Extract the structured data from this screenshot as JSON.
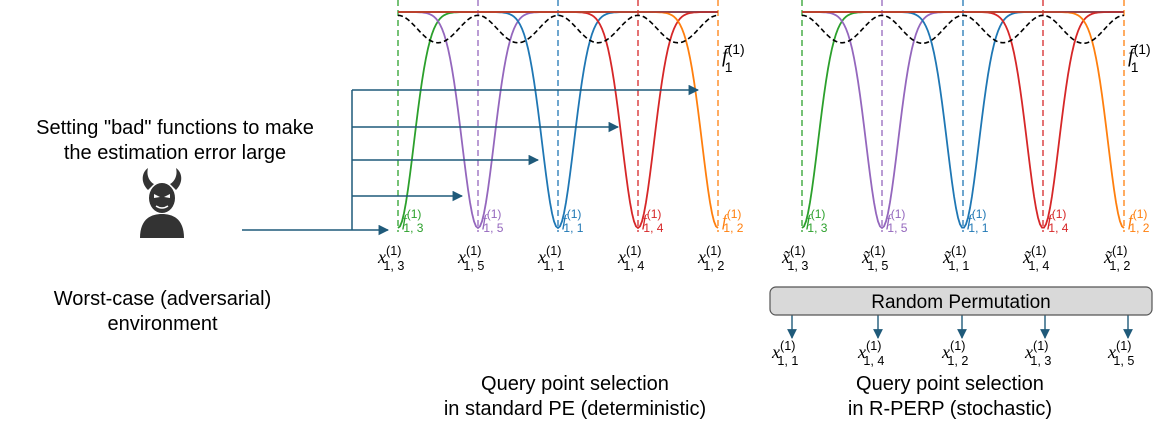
{
  "colors": {
    "green": "#2ca02c",
    "purple": "#9467bd",
    "blue": "#1f77b4",
    "red": "#d62728",
    "orange": "#ff7f0e",
    "black": "#000000",
    "arrow": "#1f5a7a",
    "box_fill": "#d9d9d9",
    "box_stroke": "#555555"
  },
  "adversary": {
    "icon": "devil-icon",
    "label_line1": "Worst-case (adversarial)",
    "label_line2": "environment"
  },
  "annotation": {
    "line1": "Setting \"bad\" functions to make",
    "line2": "the estimation error large"
  },
  "upper_bound_label": {
    "base": "f̄",
    "sub": "1",
    "sup": "(1)"
  },
  "left_panel": {
    "caption_line1": "Query point selection",
    "caption_line2": "in standard PE (deterministic)",
    "points": [
      {
        "var": "x",
        "sub": "1, 3",
        "sup": "(1)",
        "f_sub": "1, 3",
        "color": "green"
      },
      {
        "var": "x",
        "sub": "1, 5",
        "sup": "(1)",
        "f_sub": "1, 5",
        "color": "purple"
      },
      {
        "var": "x",
        "sub": "1, 1",
        "sup": "(1)",
        "f_sub": "1, 1",
        "color": "blue"
      },
      {
        "var": "x",
        "sub": "1, 4",
        "sup": "(1)",
        "f_sub": "1, 4",
        "color": "red"
      },
      {
        "var": "x",
        "sub": "1, 2",
        "sup": "(1)",
        "f_sub": "1, 2",
        "color": "orange"
      }
    ]
  },
  "right_panel": {
    "caption_line1": "Query point selection",
    "caption_line2": "in R-PERP (stochastic)",
    "box_label": "Random Permutation",
    "points": [
      {
        "var": "x̃",
        "sub": "1, 3",
        "sup": "(1)",
        "f_sub": "1, 3",
        "color": "green"
      },
      {
        "var": "x̃",
        "sub": "1, 5",
        "sup": "(1)",
        "f_sub": "1, 5",
        "color": "purple"
      },
      {
        "var": "x̃",
        "sub": "1, 1",
        "sup": "(1)",
        "f_sub": "1, 1",
        "color": "blue"
      },
      {
        "var": "x̃",
        "sub": "1, 4",
        "sup": "(1)",
        "f_sub": "1, 4",
        "color": "red"
      },
      {
        "var": "x̃",
        "sub": "1, 2",
        "sup": "(1)",
        "f_sub": "1, 2",
        "color": "orange"
      }
    ],
    "permuted": [
      {
        "var": "x",
        "sub": "1, 1",
        "sup": "(1)"
      },
      {
        "var": "x",
        "sub": "1, 4",
        "sup": "(1)"
      },
      {
        "var": "x",
        "sub": "1, 2",
        "sup": "(1)"
      },
      {
        "var": "x",
        "sub": "1, 3",
        "sup": "(1)"
      },
      {
        "var": "x",
        "sub": "1, 5",
        "sup": "(1)"
      }
    ]
  }
}
